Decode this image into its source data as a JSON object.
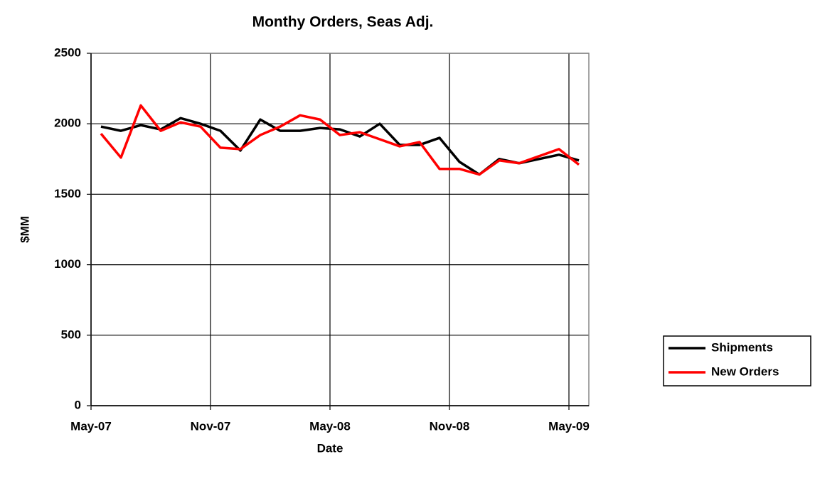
{
  "chart_data": {
    "type": "line",
    "title": "Monthy Orders, Seas Adj.",
    "x_label": "Date",
    "y_label": "$MM",
    "categories": [
      "May-07",
      null,
      null,
      null,
      null,
      null,
      "Nov-07",
      null,
      null,
      null,
      null,
      null,
      "May-08",
      null,
      null,
      null,
      null,
      null,
      "Nov-08",
      null,
      null,
      null,
      null,
      null,
      "May-09"
    ],
    "series": [
      {
        "name": "Shipments",
        "color": "#000000",
        "values": [
          1980,
          1950,
          1990,
          1960,
          2040,
          2000,
          1950,
          1810,
          2030,
          1950,
          1950,
          1970,
          1960,
          1910,
          2000,
          1850,
          1850,
          1900,
          1730,
          1640,
          1750,
          1720,
          1750,
          1780,
          1740
        ]
      },
      {
        "name": "New Orders",
        "color": "#ff0000",
        "values": [
          1930,
          1760,
          2130,
          1950,
          2010,
          1980,
          1830,
          1820,
          1920,
          1980,
          2060,
          2030,
          1920,
          1940,
          1890,
          1840,
          1870,
          1680,
          1680,
          1640,
          1740,
          1720,
          1770,
          1820,
          1710
        ]
      }
    ],
    "ylim": [
      0,
      2500
    ],
    "yticks": [
      0,
      500,
      1000,
      1500,
      2000,
      2500
    ],
    "grid": true,
    "legend": "right"
  }
}
